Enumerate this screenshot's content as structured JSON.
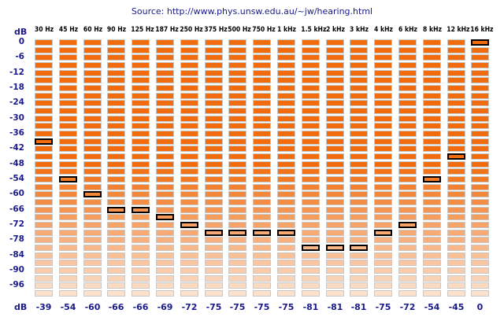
{
  "source": {
    "label": "Source:",
    "url": "http://www.phys.unsw.edu.au/~jw/hearing.html"
  },
  "axis": {
    "unit_top": "dB",
    "unit_bottom": "dB",
    "ticks": [
      "0",
      "-6",
      "-12",
      "-18",
      "-24",
      "-30",
      "-36",
      "-42",
      "-48",
      "-54",
      "-60",
      "-66",
      "-72",
      "-78",
      "-84",
      "-90",
      "-96"
    ]
  },
  "frequencies": [
    "30 Hz",
    "45 Hz",
    "60 Hz",
    "90 Hz",
    "125 Hz",
    "187 Hz",
    "250 Hz",
    "375 Hz",
    "500 Hz",
    "750 Hz",
    "1 kHz",
    "1.5 kHz",
    "2 kHz",
    "3 kHz",
    "4 kHz",
    "6 kHz",
    "8 kHz",
    "12 kHz",
    "16 kHz"
  ],
  "selected_levels_db": [
    -39,
    -54,
    -60,
    -66,
    -66,
    -69,
    -72,
    -75,
    -75,
    -75,
    -75,
    -81,
    -81,
    -81,
    -75,
    -72,
    -54,
    -45,
    0
  ],
  "value_labels": [
    "-39",
    "-54",
    "-60",
    "-66",
    "-66",
    "-69",
    "-72",
    "-75",
    "-75",
    "-75",
    "-75",
    "-81",
    "-81",
    "-81",
    "-75",
    "-72",
    "-54",
    "-45",
    "0"
  ],
  "levels_db": [
    0,
    -3,
    -6,
    -9,
    -12,
    -15,
    -18,
    -21,
    -24,
    -27,
    -30,
    -33,
    -36,
    -39,
    -42,
    -45,
    -48,
    -51,
    -54,
    -57,
    -60,
    -63,
    -66,
    -69,
    -72,
    -75,
    -78,
    -81,
    -84,
    -87,
    -90,
    -93,
    -96,
    -99
  ],
  "colors": {
    "level_top": "#f26c0d",
    "level_bottom": "#fce1cd",
    "selected_border": "#000000",
    "label_blue": "#1a1a8c"
  }
}
